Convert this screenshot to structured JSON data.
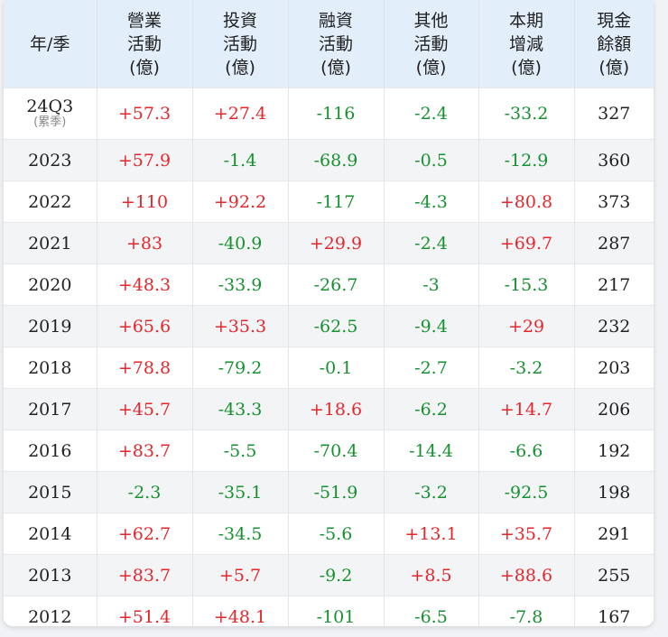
{
  "headers": [
    [
      "年/季"
    ],
    [
      "營業",
      "活動",
      "(億)"
    ],
    [
      "投資",
      "活動",
      "(億)"
    ],
    [
      "融資",
      "活動",
      "(億)"
    ],
    [
      "其他",
      "活動",
      "(億)"
    ],
    [
      "本期",
      "增減",
      "(億)"
    ],
    [
      "現金",
      "餘額",
      "(億)"
    ]
  ],
  "rows": [
    {
      "year": "24Q3",
      "note": "(累季)",
      "values": [
        "+57.3",
        "+27.4",
        "-116",
        "-2.4",
        "-33.2",
        "327"
      ]
    },
    {
      "year": "2023",
      "values": [
        "+57.9",
        "-1.4",
        "-68.9",
        "-0.5",
        "-12.9",
        "360"
      ]
    },
    {
      "year": "2022",
      "values": [
        "+110",
        "+92.2",
        "-117",
        "-4.3",
        "+80.8",
        "373"
      ]
    },
    {
      "year": "2021",
      "values": [
        "+83",
        "-40.9",
        "+29.9",
        "-2.4",
        "+69.7",
        "287"
      ]
    },
    {
      "year": "2020",
      "values": [
        "+48.3",
        "-33.9",
        "-26.7",
        "-3",
        "-15.3",
        "217"
      ]
    },
    {
      "year": "2019",
      "values": [
        "+65.6",
        "+35.3",
        "-62.5",
        "-9.4",
        "+29",
        "232"
      ]
    },
    {
      "year": "2018",
      "values": [
        "+78.8",
        "-79.2",
        "-0.1",
        "-2.7",
        "-3.2",
        "203"
      ]
    },
    {
      "year": "2017",
      "values": [
        "+45.7",
        "-43.3",
        "+18.6",
        "-6.2",
        "+14.7",
        "206"
      ]
    },
    {
      "year": "2016",
      "values": [
        "+83.7",
        "-5.5",
        "-70.4",
        "-14.4",
        "-6.6",
        "192"
      ]
    },
    {
      "year": "2015",
      "values": [
        "-2.3",
        "-35.1",
        "-51.9",
        "-3.2",
        "-92.5",
        "198"
      ]
    },
    {
      "year": "2014",
      "values": [
        "+62.7",
        "-34.5",
        "-5.6",
        "+13.1",
        "+35.7",
        "291"
      ]
    },
    {
      "year": "2013",
      "values": [
        "+83.7",
        "+5.7",
        "-9.2",
        "+8.5",
        "+88.6",
        "255"
      ]
    },
    {
      "year": "2012",
      "values": [
        "+51.4",
        "+48.1",
        "-101",
        "-6.5",
        "-7.8",
        "167"
      ]
    }
  ],
  "colors": {
    "positive": "#e5262b",
    "negative": "#17912f",
    "header_bg": "#e3eefb",
    "alt_row_bg": "#f3f4f6"
  }
}
